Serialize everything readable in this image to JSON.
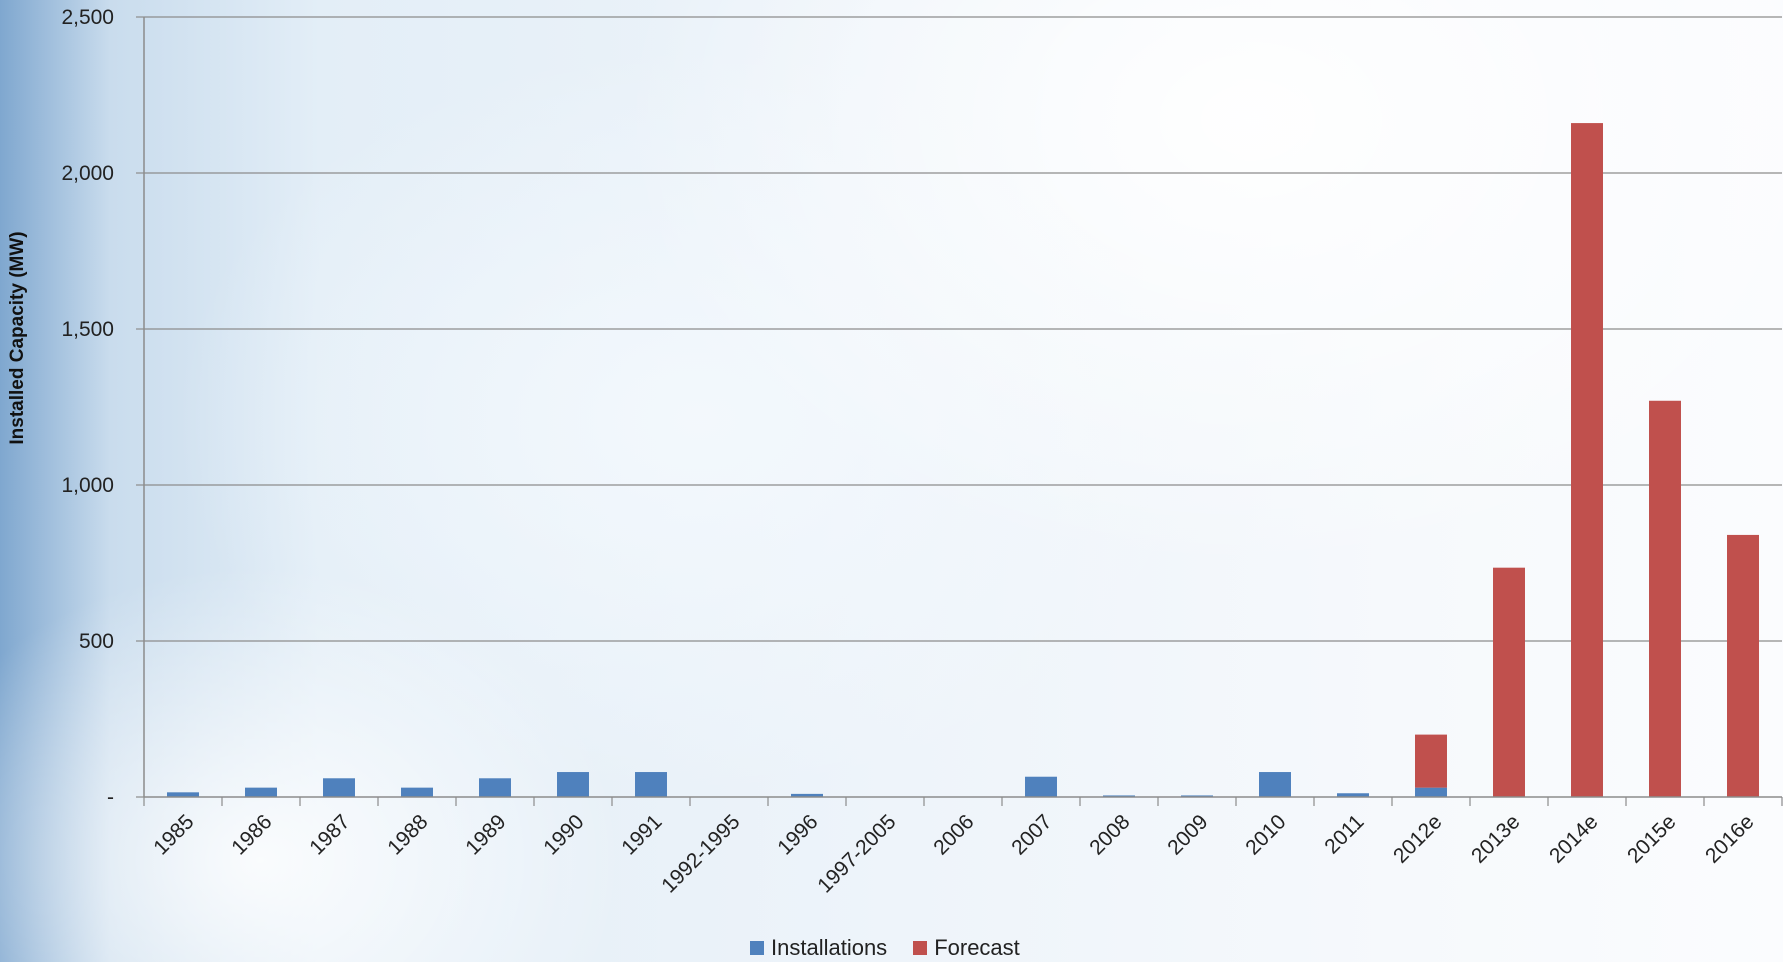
{
  "chart_data": {
    "type": "bar",
    "stacked": true,
    "ylabel": "Installed Capacity (MW)",
    "xlabel": "",
    "ylim": [
      0,
      2500
    ],
    "yticks": [
      0,
      500,
      1000,
      1500,
      2000,
      2500
    ],
    "ytick_labels": [
      "-",
      "500",
      "1,000",
      "1,500",
      "2,000",
      "2,500"
    ],
    "grid": true,
    "legend_position": "bottom",
    "categories": [
      "1985",
      "1986",
      "1987",
      "1988",
      "1989",
      "1990",
      "1991",
      "1992-1995",
      "1996",
      "1997-2005",
      "2006",
      "2007",
      "2008",
      "2009",
      "2010",
      "2011",
      "2012e",
      "2013e",
      "2014e",
      "2015e",
      "2016e"
    ],
    "series": [
      {
        "name": "Installations",
        "color": "#4f81bd",
        "values": [
          15,
          30,
          60,
          30,
          60,
          80,
          80,
          0,
          10,
          0,
          0,
          65,
          5,
          5,
          80,
          12,
          30,
          0,
          0,
          0,
          0
        ]
      },
      {
        "name": "Forecast",
        "color": "#c0504d",
        "values": [
          0,
          0,
          0,
          0,
          0,
          0,
          0,
          0,
          0,
          0,
          0,
          0,
          0,
          0,
          0,
          0,
          170,
          735,
          2160,
          1270,
          840
        ]
      }
    ]
  }
}
